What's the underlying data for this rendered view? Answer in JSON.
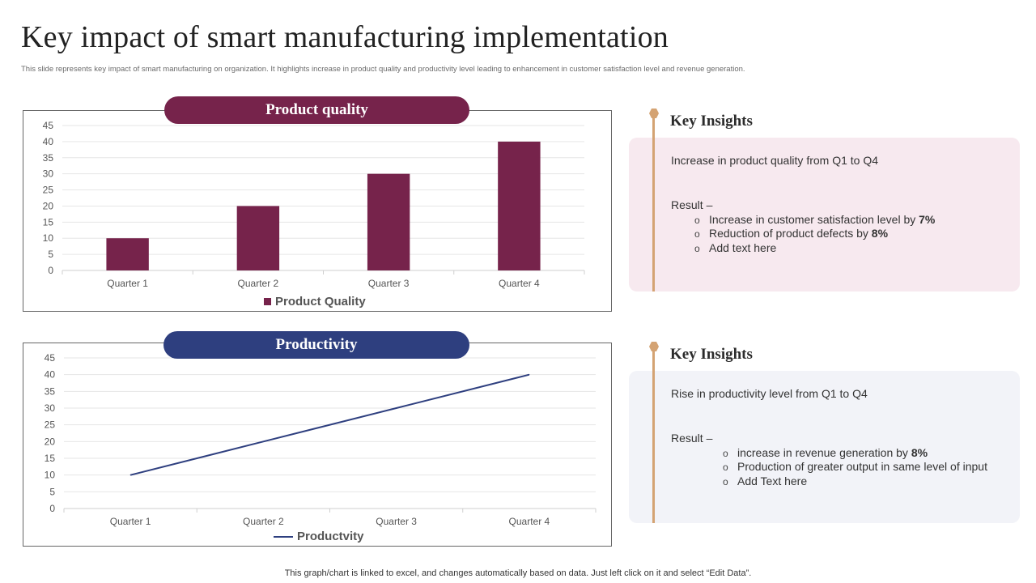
{
  "slide": {
    "title": "Key impact of smart manufacturing implementation",
    "subtitle": "This slide represents key impact of smart manufacturing on organization. It highlights increase in product quality and productivity level leading to enhancement in customer satisfaction level and revenue generation.",
    "footer": "This graph/chart is linked to excel,  and changes automatically based on data. Just left click on it and select “Edit Data”."
  },
  "colors": {
    "quality": "#76234b",
    "productivity": "#2e3f7f",
    "accent": "#d4a373",
    "pink_box": "#f7e9ef",
    "blue_box": "#f2f3f8"
  },
  "quality_panel": {
    "pill_label": "Product quality"
  },
  "productivity_panel": {
    "pill_label": "Productivity"
  },
  "chart_data": [
    {
      "type": "bar",
      "categories": [
        "Quarter 1",
        "Quarter 2",
        "Quarter 3",
        "Quarter 4"
      ],
      "series": [
        {
          "name": "Product Quality",
          "values": [
            10,
            20,
            30,
            40
          ]
        }
      ],
      "ylim": [
        0,
        45
      ],
      "yticks": [
        0,
        5,
        10,
        15,
        20,
        25,
        30,
        35,
        40,
        45
      ],
      "grid": true,
      "legend": "bottom"
    },
    {
      "type": "line",
      "categories": [
        "Quarter 1",
        "Quarter 2",
        "Quarter 3",
        "Quarter 4"
      ],
      "series": [
        {
          "name": "Productvity",
          "values": [
            10,
            20,
            30,
            40
          ]
        }
      ],
      "ylim": [
        0,
        45
      ],
      "yticks": [
        0,
        5,
        10,
        15,
        20,
        25,
        30,
        35,
        40,
        45
      ],
      "grid": true,
      "legend": "bottom"
    }
  ],
  "insights": [
    {
      "heading": "Key Insights",
      "intro": "Increase in product quality from Q1 to Q4",
      "result_label": "Result –",
      "bullet_symbol": "o",
      "bullets": [
        {
          "text": "Increase in customer satisfaction level by ",
          "bold": "7%"
        },
        {
          "text": "Reduction of product defects by ",
          "bold": "8%"
        },
        {
          "text": "Add text here",
          "bold": ""
        }
      ]
    },
    {
      "heading": "Key Insights",
      "intro": "Rise in productivity level from Q1 to Q4",
      "result_label": "Result –",
      "bullet_symbol": "o",
      "bullets": [
        {
          "text": "increase in revenue generation by ",
          "bold": "8%"
        },
        {
          "text": "Production of greater output in same level of input",
          "bold": ""
        },
        {
          "text": "Add Text here",
          "bold": ""
        }
      ]
    }
  ]
}
